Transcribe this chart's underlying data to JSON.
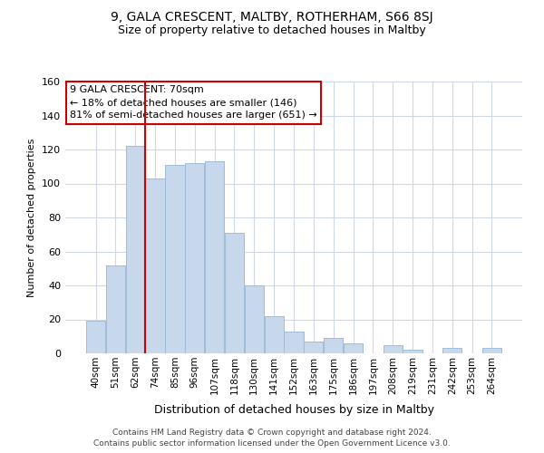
{
  "title1": "9, GALA CRESCENT, MALTBY, ROTHERHAM, S66 8SJ",
  "title2": "Size of property relative to detached houses in Maltby",
  "xlabel": "Distribution of detached houses by size in Maltby",
  "ylabel": "Number of detached properties",
  "categories": [
    "40sqm",
    "51sqm",
    "62sqm",
    "74sqm",
    "85sqm",
    "96sqm",
    "107sqm",
    "118sqm",
    "130sqm",
    "141sqm",
    "152sqm",
    "163sqm",
    "175sqm",
    "186sqm",
    "197sqm",
    "208sqm",
    "219sqm",
    "231sqm",
    "242sqm",
    "253sqm",
    "264sqm"
  ],
  "values": [
    19,
    52,
    122,
    103,
    111,
    112,
    113,
    71,
    40,
    22,
    13,
    7,
    9,
    6,
    0,
    5,
    2,
    0,
    3,
    0,
    3
  ],
  "bar_color": "#c8d8ec",
  "bar_edge_color": "#a0bcd8",
  "ref_line_label": "9 GALA CRESCENT: 70sqm",
  "annotation_line1": "← 18% of detached houses are smaller (146)",
  "annotation_line2": "81% of semi-detached houses are larger (651) →",
  "annotation_box_color": "#ffffff",
  "annotation_box_edge": "#cc0000",
  "ref_line_color": "#cc0000",
  "ylim": [
    0,
    160
  ],
  "yticks": [
    0,
    20,
    40,
    60,
    80,
    100,
    120,
    140,
    160
  ],
  "footer1": "Contains HM Land Registry data © Crown copyright and database right 2024.",
  "footer2": "Contains public sector information licensed under the Open Government Licence v3.0.",
  "background_color": "#ffffff",
  "grid_color": "#d0d8e8"
}
